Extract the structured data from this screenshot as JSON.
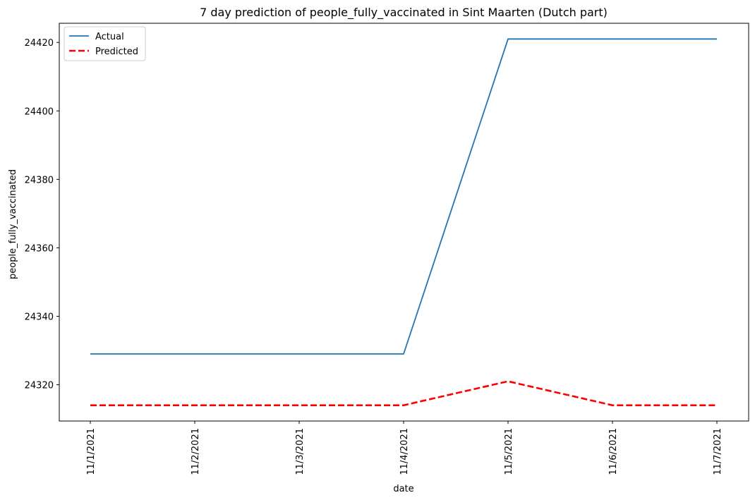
{
  "chart_data": {
    "type": "line",
    "title": "7 day prediction of people_fully_vaccinated in Sint Maarten (Dutch part)",
    "xlabel": "date",
    "ylabel": "people_fully_vaccinated",
    "x": [
      "11/1/2021",
      "11/2/2021",
      "11/3/2021",
      "11/4/2021",
      "11/5/2021",
      "11/6/2021",
      "11/7/2021"
    ],
    "ylim": [
      24309.4,
      24425.6
    ],
    "yticks": [
      24320,
      24340,
      24360,
      24380,
      24400,
      24420
    ],
    "grid": false,
    "legend_position": "top-left",
    "series": [
      {
        "name": "Actual",
        "color": "#1f77b4",
        "style": "solid",
        "values": [
          24329,
          24329,
          24329,
          24329,
          24421,
          24421,
          24421
        ]
      },
      {
        "name": "Predicted",
        "color": "#ff0000",
        "style": "dashed",
        "values": [
          24314,
          24314,
          24314,
          24314,
          24321,
          24314,
          24314
        ]
      }
    ]
  }
}
